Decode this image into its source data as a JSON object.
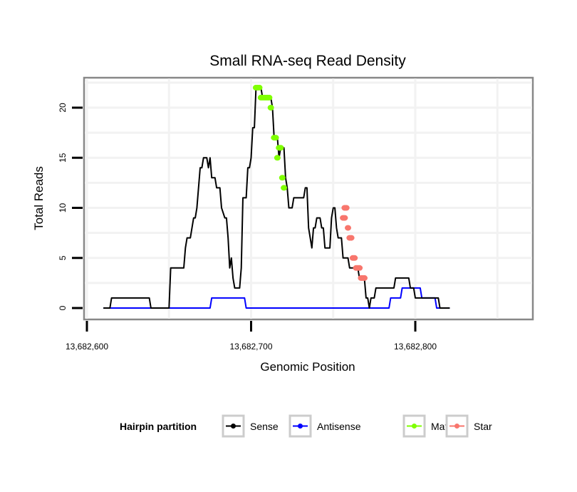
{
  "chart_data": {
    "type": "line",
    "title": "Small RNA-seq Read Density",
    "xlabel": "Genomic Position",
    "ylabel": "Total Reads",
    "xlim": [
      13682599,
      13682871
    ],
    "ylim": [
      -1.2,
      22.5
    ],
    "grid": true,
    "x_ticks": [
      {
        "value": 13682600,
        "label": "13,682,600"
      },
      {
        "value": 13682700,
        "label": "13,682,700"
      },
      {
        "value": 13682800,
        "label": "13,682,800"
      }
    ],
    "y_ticks": [
      {
        "value": 0,
        "label": "0"
      },
      {
        "value": 5,
        "label": "5"
      },
      {
        "value": 10,
        "label": "10"
      },
      {
        "value": 15,
        "label": "15"
      },
      {
        "value": 20,
        "label": "20"
      }
    ],
    "legend": {
      "title": "Hairpin partition",
      "placement": "bottom",
      "entries": [
        {
          "label": "Sense",
          "color": "#000000"
        },
        {
          "label": "Antisense",
          "color": "#0000ff"
        },
        {
          "label": "Mature",
          "color": "#7fff00"
        },
        {
          "label": "Star",
          "color": "#f8766d"
        }
      ]
    },
    "series": [
      {
        "name": "Sense",
        "color": "#000000",
        "points": [
          [
            13682610,
            0
          ],
          [
            13682614,
            0
          ],
          [
            13682615,
            1
          ],
          [
            13682638,
            1
          ],
          [
            13682639,
            0
          ],
          [
            13682650,
            0
          ],
          [
            13682651,
            4
          ],
          [
            13682659,
            4
          ],
          [
            13682660,
            6
          ],
          [
            13682661,
            7
          ],
          [
            13682663,
            7
          ],
          [
            13682665,
            9
          ],
          [
            13682666,
            9
          ],
          [
            13682667,
            10
          ],
          [
            13682669,
            14
          ],
          [
            13682670,
            14
          ],
          [
            13682671,
            15
          ],
          [
            13682673,
            15
          ],
          [
            13682674,
            14
          ],
          [
            13682675,
            15
          ],
          [
            13682676,
            13
          ],
          [
            13682678,
            13
          ],
          [
            13682679,
            12
          ],
          [
            13682681,
            12
          ],
          [
            13682682,
            10
          ],
          [
            13682684,
            9
          ],
          [
            13682685,
            9
          ],
          [
            13682686,
            7
          ],
          [
            13682687,
            4
          ],
          [
            13682688,
            5
          ],
          [
            13682689,
            3
          ],
          [
            13682690,
            2
          ],
          [
            13682693,
            2
          ],
          [
            13682694,
            4
          ],
          [
            13682695,
            11
          ],
          [
            13682697,
            11
          ],
          [
            13682698,
            14
          ],
          [
            13682699,
            14
          ],
          [
            13682700,
            15
          ],
          [
            13682701,
            18
          ],
          [
            13682702,
            18
          ],
          [
            13682703,
            22
          ],
          [
            13682706,
            22
          ],
          [
            13682707,
            21
          ],
          [
            13682712,
            21
          ],
          [
            13682713,
            20
          ],
          [
            13682714,
            17
          ],
          [
            13682716,
            17
          ],
          [
            13682717,
            15
          ],
          [
            13682718,
            16
          ],
          [
            13682720,
            16
          ],
          [
            13682721,
            13
          ],
          [
            13682722,
            12
          ],
          [
            13682723,
            10
          ],
          [
            13682725,
            10
          ],
          [
            13682726,
            11
          ],
          [
            13682732,
            11
          ],
          [
            13682733,
            12
          ],
          [
            13682734,
            12
          ],
          [
            13682735,
            8
          ],
          [
            13682736,
            7
          ],
          [
            13682737,
            6
          ],
          [
            13682738,
            8
          ],
          [
            13682739,
            8
          ],
          [
            13682740,
            9
          ],
          [
            13682742,
            9
          ],
          [
            13682743,
            8
          ],
          [
            13682744,
            8
          ],
          [
            13682745,
            6
          ],
          [
            13682748,
            6
          ],
          [
            13682749,
            9
          ],
          [
            13682750,
            10
          ],
          [
            13682751,
            10
          ],
          [
            13682752,
            8
          ],
          [
            13682753,
            7
          ],
          [
            13682755,
            7
          ],
          [
            13682756,
            5
          ],
          [
            13682759,
            5
          ],
          [
            13682760,
            4
          ],
          [
            13682765,
            4
          ],
          [
            13682766,
            3
          ],
          [
            13682769,
            3
          ],
          [
            13682770,
            1
          ],
          [
            13682771,
            1
          ],
          [
            13682772,
            0
          ],
          [
            13682773,
            1
          ],
          [
            13682775,
            1
          ],
          [
            13682776,
            2
          ],
          [
            13682787,
            2
          ],
          [
            13682788,
            3
          ],
          [
            13682796,
            3
          ],
          [
            13682797,
            2
          ],
          [
            13682799,
            2
          ],
          [
            13682800,
            1
          ],
          [
            13682814,
            1
          ],
          [
            13682815,
            0
          ],
          [
            13682821,
            0
          ]
        ]
      },
      {
        "name": "Antisense",
        "color": "#0000ff",
        "points": [
          [
            13682610,
            0
          ],
          [
            13682675,
            0
          ],
          [
            13682676,
            1
          ],
          [
            13682696,
            1
          ],
          [
            13682697,
            0
          ],
          [
            13682775,
            0
          ],
          [
            13682784,
            0
          ],
          [
            13682785,
            1
          ],
          [
            13682791,
            1
          ],
          [
            13682792,
            2
          ],
          [
            13682803,
            2
          ],
          [
            13682804,
            1
          ],
          [
            13682812,
            1
          ],
          [
            13682813,
            0
          ],
          [
            13682821,
            0
          ]
        ]
      },
      {
        "name": "Mature",
        "color": "#7fff00",
        "points": [
          [
            13682703,
            22
          ],
          [
            13682704,
            22
          ],
          [
            13682705,
            22
          ],
          [
            13682706,
            21
          ],
          [
            13682707,
            21
          ],
          [
            13682708,
            21
          ],
          [
            13682709,
            21
          ],
          [
            13682710,
            21
          ],
          [
            13682711,
            21
          ],
          [
            13682712,
            20
          ],
          [
            13682714,
            17
          ],
          [
            13682715,
            17
          ],
          [
            13682716,
            15
          ],
          [
            13682717,
            16
          ],
          [
            13682718,
            16
          ],
          [
            13682719,
            13
          ],
          [
            13682720,
            12
          ]
        ]
      },
      {
        "name": "Star",
        "color": "#f8766d",
        "points": [
          [
            13682757,
            10
          ],
          [
            13682758,
            10
          ],
          [
            13682756,
            9
          ],
          [
            13682757,
            9
          ],
          [
            13682759,
            8
          ],
          [
            13682760,
            7
          ],
          [
            13682761,
            7
          ],
          [
            13682762,
            5
          ],
          [
            13682763,
            5
          ],
          [
            13682764,
            4
          ],
          [
            13682765,
            4
          ],
          [
            13682766,
            4
          ],
          [
            13682767,
            3
          ],
          [
            13682768,
            3
          ],
          [
            13682769,
            3
          ]
        ]
      }
    ]
  }
}
